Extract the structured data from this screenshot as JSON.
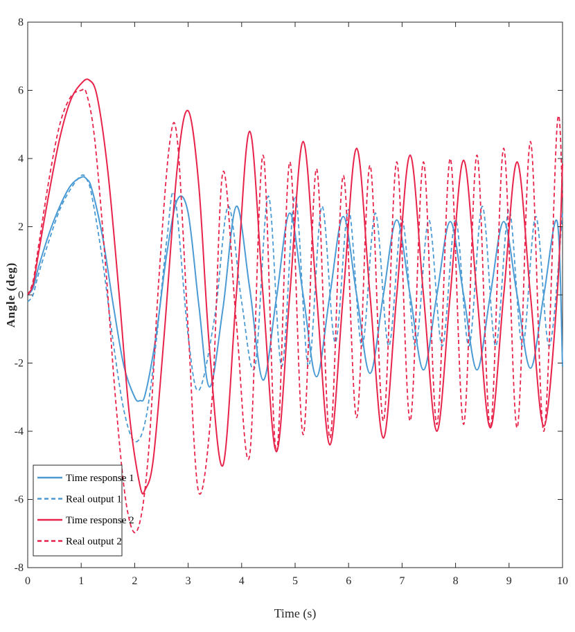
{
  "chart_data": {
    "type": "line",
    "title": "",
    "xlabel": "Time (s)",
    "ylabel": "Angle (deg)",
    "xlim": [
      0,
      10
    ],
    "ylim": [
      -8,
      8
    ],
    "xticks": [
      0,
      1,
      2,
      3,
      4,
      5,
      6,
      7,
      8,
      9,
      10
    ],
    "yticks": [
      -8,
      -6,
      -4,
      -2,
      0,
      2,
      4,
      6,
      8
    ],
    "grid": false,
    "legend_position": "bottom-left",
    "series": [
      {
        "name": "Time response 1",
        "color": "#4a9ad4",
        "style": "solid",
        "x": [
          0,
          0.1,
          0.2,
          0.4,
          0.6,
          0.8,
          1.0,
          1.1,
          1.2,
          1.4,
          1.6,
          1.8,
          2.0,
          2.1,
          2.2,
          2.4,
          2.6,
          2.8,
          3.0,
          3.2,
          3.4,
          3.65,
          3.9,
          4.15,
          4.4,
          4.65,
          4.9,
          5.15,
          5.4,
          5.65,
          5.9,
          6.15,
          6.4,
          6.65,
          6.9,
          7.15,
          7.4,
          7.65,
          7.9,
          8.15,
          8.4,
          8.65,
          8.9,
          9.15,
          9.4,
          9.65,
          9.9,
          10.0
        ],
        "y": [
          0,
          0.2,
          0.8,
          1.8,
          2.6,
          3.2,
          3.45,
          3.4,
          3.1,
          1.7,
          -0.3,
          -2.1,
          -3.0,
          -3.1,
          -2.9,
          -1.2,
          1.2,
          2.8,
          2.4,
          -0.3,
          -2.7,
          -0.4,
          2.6,
          0.2,
          -2.5,
          -0.1,
          2.4,
          0,
          -2.4,
          0,
          2.3,
          0,
          -2.3,
          0,
          2.2,
          0,
          -2.2,
          0,
          2.15,
          0,
          -2.2,
          0,
          2.15,
          0,
          -2.15,
          0,
          2.15,
          -2.1
        ]
      },
      {
        "name": "Real output 1",
        "color": "#4a9ad4",
        "style": "dashed",
        "x": [
          0,
          0.1,
          0.2,
          0.4,
          0.6,
          0.8,
          1.0,
          1.1,
          1.2,
          1.4,
          1.6,
          1.8,
          2.0,
          2.2,
          2.4,
          2.6,
          2.75,
          3.0,
          3.2,
          3.5,
          3.75,
          4.0,
          4.25,
          4.5,
          4.75,
          5.0,
          5.25,
          5.5,
          5.75,
          6.0,
          6.25,
          6.5,
          6.75,
          7.0,
          7.25,
          7.5,
          7.75,
          8.0,
          8.25,
          8.5,
          8.75,
          9.0,
          9.25,
          9.5,
          9.75,
          10.0
        ],
        "y": [
          -0.2,
          0,
          0.6,
          1.6,
          2.5,
          3.1,
          3.5,
          3.4,
          2.9,
          1.0,
          -1.4,
          -3.4,
          -4.3,
          -3.7,
          -1.4,
          1.6,
          2.9,
          -1.2,
          -2.8,
          -0.6,
          2.6,
          -0.2,
          -2.1,
          2.9,
          -2.1,
          2.9,
          -2.1,
          2.6,
          -1.4,
          2.5,
          -1.5,
          2.4,
          -1.5,
          2.2,
          -1.5,
          2.2,
          -1.5,
          2.2,
          -1.5,
          2.6,
          -1.5,
          2.5,
          -1.5,
          2.3,
          -1.5,
          2.4
        ]
      },
      {
        "name": "Time response 2",
        "color": "#e8234a",
        "style": "solid",
        "x": [
          0,
          0.1,
          0.2,
          0.4,
          0.6,
          0.8,
          1.0,
          1.15,
          1.3,
          1.5,
          1.7,
          1.9,
          2.1,
          2.2,
          2.35,
          2.55,
          2.8,
          3.0,
          3.2,
          3.4,
          3.65,
          3.9,
          4.15,
          4.4,
          4.65,
          4.9,
          5.15,
          5.4,
          5.65,
          5.9,
          6.15,
          6.4,
          6.65,
          6.9,
          7.15,
          7.4,
          7.65,
          7.9,
          8.15,
          8.4,
          8.65,
          8.9,
          9.15,
          9.4,
          9.65,
          9.9,
          10.0
        ],
        "y": [
          0,
          0.3,
          1.2,
          3.0,
          4.6,
          5.7,
          6.2,
          6.3,
          5.8,
          3.6,
          0.2,
          -3.5,
          -5.6,
          -5.7,
          -4.8,
          -1.2,
          3.8,
          5.4,
          3.2,
          -1.6,
          -5.0,
          0,
          4.8,
          0,
          -4.6,
          0,
          4.5,
          0,
          -4.4,
          0,
          4.3,
          0,
          -4.2,
          0,
          4.1,
          0,
          -4.0,
          0,
          3.95,
          0,
          -3.9,
          0,
          3.9,
          0,
          -3.85,
          0,
          3.85
        ]
      },
      {
        "name": "Real output 2",
        "color": "#e8234a",
        "style": "dashed",
        "x": [
          0,
          0.1,
          0.2,
          0.4,
          0.6,
          0.8,
          1.0,
          1.1,
          1.25,
          1.45,
          1.65,
          1.85,
          2.05,
          2.25,
          2.45,
          2.65,
          2.8,
          3.0,
          3.2,
          3.45,
          3.65,
          3.9,
          4.15,
          4.4,
          4.65,
          4.9,
          5.15,
          5.4,
          5.65,
          5.9,
          6.15,
          6.4,
          6.65,
          6.9,
          7.15,
          7.4,
          7.65,
          7.9,
          8.15,
          8.4,
          8.65,
          8.9,
          9.15,
          9.4,
          9.65,
          9.9,
          10.0
        ],
        "y": [
          0,
          0.4,
          1.4,
          3.4,
          5.0,
          5.8,
          6.0,
          5.9,
          4.6,
          1.0,
          -3.2,
          -6.2,
          -6.9,
          -4.8,
          0.4,
          4.4,
          4.5,
          -1.0,
          -5.8,
          -3.0,
          3.6,
          -0.8,
          -4.7,
          4.1,
          -4.6,
          3.9,
          -4.1,
          3.7,
          -4.2,
          3.5,
          -3.6,
          3.8,
          -3.7,
          3.9,
          -3.7,
          3.9,
          -3.8,
          4.0,
          -3.8,
          4.1,
          -3.9,
          4.3,
          -3.9,
          4.5,
          -4.0,
          5.0,
          2.8
        ]
      }
    ]
  }
}
